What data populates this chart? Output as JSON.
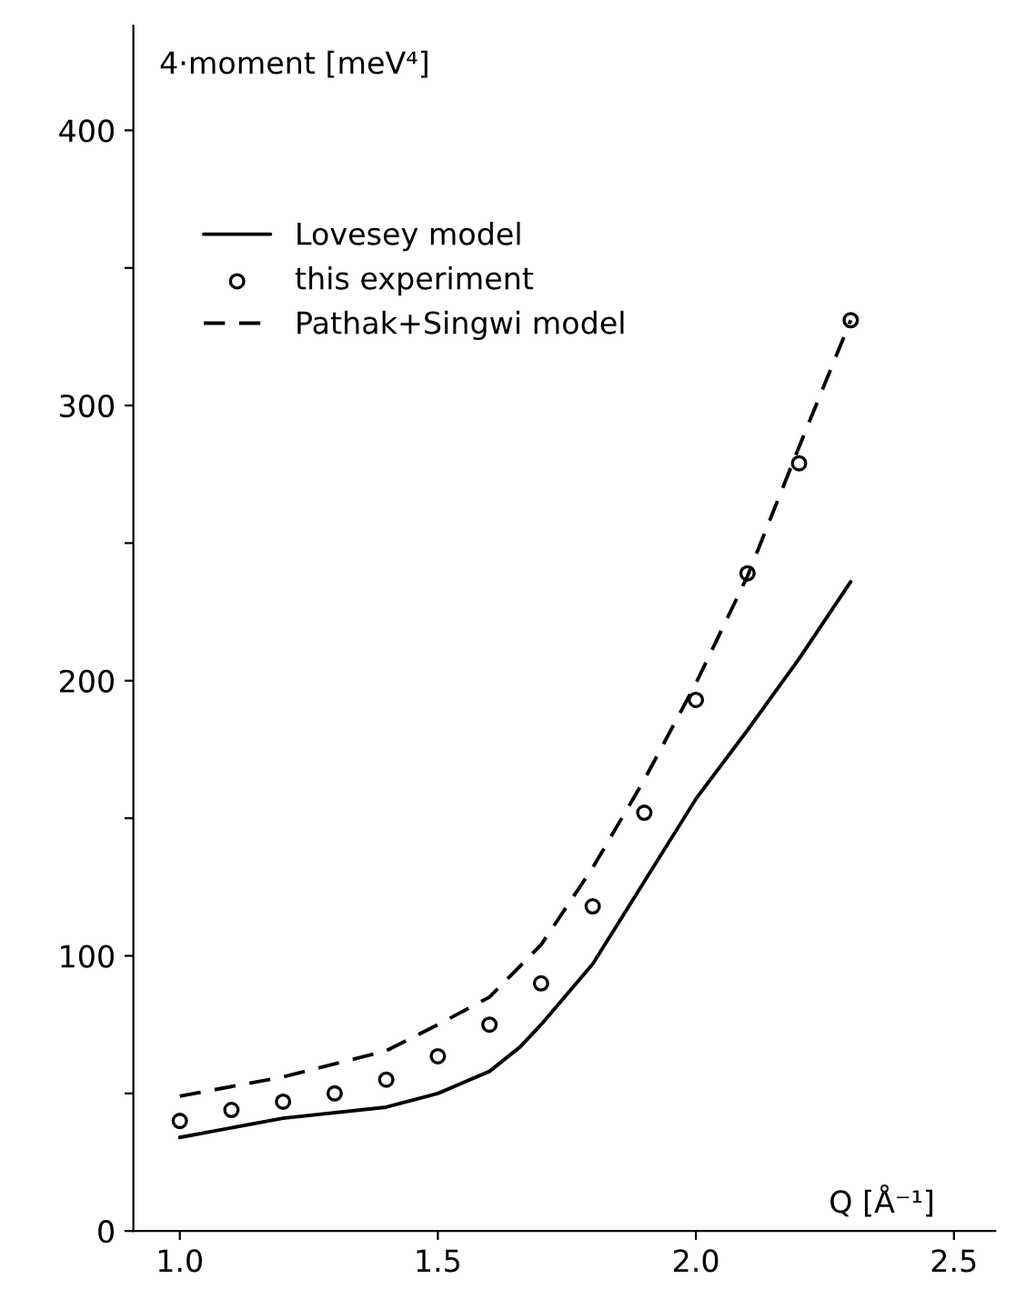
{
  "chart_data": {
    "type": "line",
    "xlabel": "Q [Å⁻¹]",
    "ylabel": "4·moment [meV⁴]",
    "xlim": [
      0.91,
      2.58
    ],
    "ylim": [
      0,
      438
    ],
    "xticks": [
      {
        "value": 1.0,
        "label": "1.0"
      },
      1.5,
      {
        "value": 2.0,
        "label": "2.0"
      },
      2.5
    ],
    "yticks": [
      0,
      {
        "value": 50,
        "label": null
      },
      100,
      {
        "value": 150,
        "label": null
      },
      200,
      {
        "value": 250,
        "label": null
      },
      300,
      {
        "value": 350,
        "label": null
      },
      400
    ],
    "grid": false,
    "legend": "top left",
    "series": [
      {
        "name": "Lovesey model",
        "line_style": "solid",
        "marker": "none",
        "color": "#000000",
        "x": [
          1.0,
          1.2,
          1.4,
          1.5,
          1.6,
          1.66,
          1.7,
          1.8,
          1.9,
          2.0,
          2.1,
          2.2,
          2.3
        ],
        "values": [
          34,
          41,
          45,
          50,
          58,
          67,
          75,
          97,
          127,
          157,
          182,
          208,
          236
        ]
      },
      {
        "name": "this experiment",
        "type": "scatter",
        "marker": "circle",
        "color": "#000000",
        "x": [
          1.0,
          1.1,
          1.2,
          1.3,
          1.4,
          1.5,
          1.6,
          1.7,
          1.8,
          1.9,
          2.0,
          2.1,
          2.2,
          2.3
        ],
        "values": [
          40,
          44,
          47,
          50,
          55,
          63.5,
          75,
          90,
          118,
          152,
          193,
          239,
          279,
          331
        ]
      },
      {
        "name": "Pathak+Singwi model",
        "line_style": "dashed",
        "marker": "none",
        "color": "#000000",
        "x": [
          1.0,
          1.2,
          1.4,
          1.5,
          1.6,
          1.7,
          1.8,
          1.9,
          2.0,
          2.1,
          2.2,
          2.3
        ],
        "values": [
          49,
          56,
          65.5,
          75,
          85,
          104,
          132,
          164,
          199,
          238,
          285,
          331
        ]
      }
    ]
  }
}
